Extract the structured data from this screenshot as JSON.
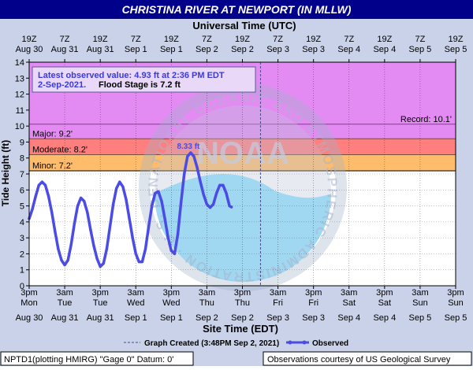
{
  "chart_data": {
    "type": "line",
    "title": "CHRISTINA RIVER AT NEWPORT (IN MLLW)",
    "top_axis_title": "Universal Time (UTC)",
    "bottom_axis_title": "Site Time (EDT)",
    "ylabel": "Tide Height (ft)",
    "ylim": [
      0,
      14
    ],
    "y_ticks": [
      0,
      1,
      2,
      3,
      4,
      5,
      6,
      7,
      8,
      9,
      10,
      11,
      12,
      13,
      14
    ],
    "x_range_hours": [
      0,
      132
    ],
    "bottom_ticks": [
      {
        "t": "3pm",
        "d": "Mon",
        "w": "Aug 30"
      },
      {
        "t": "3am",
        "d": "Tue",
        "w": "Aug 31"
      },
      {
        "t": "3pm",
        "d": "Tue",
        "w": "Aug 31"
      },
      {
        "t": "3am",
        "d": "Wed",
        "w": "Sep 1"
      },
      {
        "t": "3pm",
        "d": "Wed",
        "w": "Sep 1"
      },
      {
        "t": "3am",
        "d": "Thu",
        "w": "Sep 2"
      },
      {
        "t": "3pm",
        "d": "Thu",
        "w": "Sep 2"
      },
      {
        "t": "3am",
        "d": "Fri",
        "w": "Sep 3"
      },
      {
        "t": "3pm",
        "d": "Fri",
        "w": "Sep 3"
      },
      {
        "t": "3am",
        "d": "Sat",
        "w": "Sep 4"
      },
      {
        "t": "3pm",
        "d": "Sat",
        "w": "Sep 4"
      },
      {
        "t": "3am",
        "d": "Sun",
        "w": "Sep 5"
      },
      {
        "t": "3pm",
        "d": "Sun",
        "w": "Sep 5"
      }
    ],
    "top_ticks": [
      {
        "t": "19Z",
        "w": "Aug 30"
      },
      {
        "t": "7Z",
        "w": "Aug 31"
      },
      {
        "t": "19Z",
        "w": "Aug 31"
      },
      {
        "t": "7Z",
        "w": "Sep 1"
      },
      {
        "t": "19Z",
        "w": "Sep 1"
      },
      {
        "t": "7Z",
        "w": "Sep 2"
      },
      {
        "t": "19Z",
        "w": "Sep 2"
      },
      {
        "t": "7Z",
        "w": "Sep 3"
      },
      {
        "t": "19Z",
        "w": "Sep 3"
      },
      {
        "t": "7Z",
        "w": "Sep 4"
      },
      {
        "t": "19Z",
        "w": "Sep 4"
      },
      {
        "t": "7Z",
        "w": "Sep 5"
      },
      {
        "t": "19Z",
        "w": "Sep 5"
      }
    ],
    "bands": [
      {
        "name": "record",
        "label": "",
        "from": 10.1,
        "to": 14,
        "color": "#e48bf3"
      },
      {
        "name": "major",
        "label": "Major:  9.2'",
        "from": 9.2,
        "to": 10.1,
        "color": "#e48bf3"
      },
      {
        "name": "moderate",
        "label": "Moderate:  8.2'",
        "from": 8.2,
        "to": 9.2,
        "color": "#ff7f7f"
      },
      {
        "name": "minor",
        "label": "Minor:  7.2'",
        "from": 7.2,
        "to": 8.2,
        "color": "#ffbd6b"
      }
    ],
    "record_label": "Record:  10.1'",
    "record_value": 10.1,
    "colors": {
      "observed": "#4b4be6",
      "plot_bg": "#ffffff",
      "frame": "#000000",
      "watermark": "#8fd0ee"
    },
    "annotation": {
      "line1": "Latest observed value:  4.93 ft at 2:36 PM EDT",
      "line2a": "2-Sep-2021.",
      "line2b": "Flood Stage is 7.2 ft"
    },
    "peak_label": "8.33 ft",
    "peak": {
      "x": 50,
      "y": 8.33
    },
    "created_x": 71.6,
    "watermark_text": "NATIONAL OCEANIC AND ATMOSPHERIC ADMINISTRATION · U.S. DEPARTMENT OF COMMERCE",
    "noaa_text": "NOAA",
    "series": [
      {
        "name": "Observed",
        "points": [
          [
            0,
            4.2
          ],
          [
            1,
            4.8
          ],
          [
            2,
            5.6
          ],
          [
            3,
            6.3
          ],
          [
            4,
            6.5
          ],
          [
            5,
            6.3
          ],
          [
            6,
            5.6
          ],
          [
            7,
            4.6
          ],
          [
            8,
            3.4
          ],
          [
            9,
            2.3
          ],
          [
            10,
            1.6
          ],
          [
            11,
            1.3
          ],
          [
            12,
            1.6
          ],
          [
            13,
            2.6
          ],
          [
            14,
            3.9
          ],
          [
            15,
            5.0
          ],
          [
            16,
            5.5
          ],
          [
            17,
            5.3
          ],
          [
            18,
            4.6
          ],
          [
            19,
            3.5
          ],
          [
            20,
            2.5
          ],
          [
            21,
            1.7
          ],
          [
            22,
            1.2
          ],
          [
            23,
            1.4
          ],
          [
            24,
            2.3
          ],
          [
            25,
            3.7
          ],
          [
            26,
            5.1
          ],
          [
            27,
            6.1
          ],
          [
            28,
            6.5
          ],
          [
            29,
            6.2
          ],
          [
            30,
            5.4
          ],
          [
            31,
            4.2
          ],
          [
            32,
            3.0
          ],
          [
            33,
            2.0
          ],
          [
            34,
            1.5
          ],
          [
            35,
            1.5
          ],
          [
            36,
            2.3
          ],
          [
            37,
            3.7
          ],
          [
            38,
            5.0
          ],
          [
            39,
            5.8
          ],
          [
            40,
            5.9
          ],
          [
            41,
            5.3
          ],
          [
            42,
            4.2
          ],
          [
            43,
            3.0
          ],
          [
            44,
            2.2
          ],
          [
            45,
            2.0
          ],
          [
            46,
            3.2
          ],
          [
            47,
            5.2
          ],
          [
            48,
            7.0
          ],
          [
            49,
            8.1
          ],
          [
            50,
            8.33
          ],
          [
            51,
            8.1
          ],
          [
            52,
            7.4
          ],
          [
            53,
            6.5
          ],
          [
            54,
            5.7
          ],
          [
            55,
            5.1
          ],
          [
            56,
            4.9
          ],
          [
            57,
            5.1
          ],
          [
            58,
            5.8
          ],
          [
            59,
            6.3
          ],
          [
            60,
            6.3
          ],
          [
            61,
            5.8
          ],
          [
            62,
            5.0
          ],
          [
            62.6,
            4.93
          ]
        ]
      }
    ],
    "legend": {
      "created": "Graph Created (3:48PM Sep 2, 2021)",
      "observed": "Observed"
    },
    "footer": {
      "left": "NPTD1(plotting HMIRG) \"Gage 0\" Datum:  0'",
      "right": "Observations courtesy of US Geological Survey"
    }
  }
}
